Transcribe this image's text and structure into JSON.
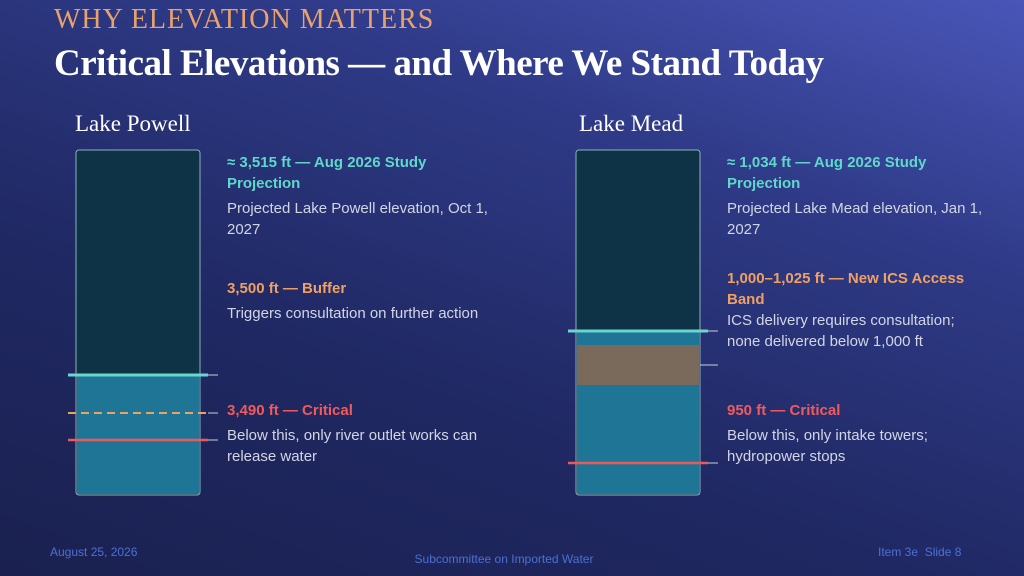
{
  "header": {
    "kicker": "WHY ELEVATION MATTERS",
    "title": "Critical Elevations — and Where We Stand Today"
  },
  "panels": [
    {
      "title": "Lake Powell",
      "notes": [
        {
          "heading": "≈ 3,515 ft — Aug 2026 Study Projection",
          "body": "Projected Lake Powell elevation, Oct 1, 2027"
        },
        {
          "heading": "3,500 ft — Buffer",
          "body": "Triggers consultation on further action"
        },
        {
          "heading": "3,490 ft — Critical",
          "body": "Below this, only river outlet works can release water"
        }
      ]
    },
    {
      "title": "Lake Mead",
      "notes": [
        {
          "heading": "≈ 1,034 ft — Aug 2026 Study Projection",
          "body": "Projected Lake Mead elevation, Jan 1, 2027"
        },
        {
          "heading": "1,000–1,025 ft — New ICS Access Band",
          "body": "ICS delivery requires consultation; none delivered below 1,000 ft"
        },
        {
          "heading": "950 ft — Critical",
          "body": "Below this, only intake towers; hydropower stops"
        }
      ]
    }
  ],
  "footer": {
    "date": "August 25, 2026",
    "center": "Subcommittee on Imported Water",
    "right": "Item 3e  Slide 8"
  }
}
